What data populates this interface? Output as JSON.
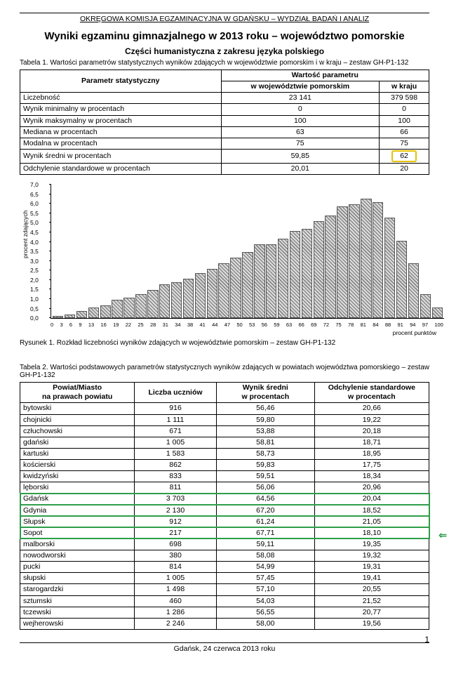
{
  "header": "OKRĘGOWA KOMISJA EGZAMINACYJNA W GDAŃSKU – WYDZIAŁ BADAŃ I ANALIZ",
  "title": "Wyniki egzaminu gimnazjalnego w 2013 roku – województwo pomorskie",
  "subtitle": "Części humanistyczna z zakresu języka polskiego",
  "table1_caption": "Tabela 1. Wartości parametrów statystycznych wyników zdających w województwie pomorskim i w kraju – zestaw GH-P1-132",
  "t1": {
    "h_param": "Parametr statystyczny",
    "h_val": "Wartość parametru",
    "h_region": "w województwie pomorskim",
    "h_country": "w kraju",
    "rows": [
      {
        "label": "Liczebność",
        "a": "23 141",
        "b": "379 598"
      },
      {
        "label": "Wynik minimalny w procentach",
        "a": "0",
        "b": "0"
      },
      {
        "label": "Wynik maksymalny w procentach",
        "a": "100",
        "b": "100"
      },
      {
        "label": "Mediana w procentach",
        "a": "63",
        "b": "66"
      },
      {
        "label": "Modalna w procentach",
        "a": "75",
        "b": "75"
      },
      {
        "label": "Wynik średni w procentach",
        "a": "59,85",
        "b": "62",
        "hl": true
      },
      {
        "label": "Odchylenie standardowe w procentach",
        "a": "20,01",
        "b": "20"
      }
    ]
  },
  "chart": {
    "ylabel": "procent zdających",
    "xlabel": "procent punktów",
    "ymax": 7.0,
    "ytick_step": 0.5,
    "x_categories": [
      0,
      3,
      6,
      9,
      13,
      16,
      19,
      22,
      25,
      28,
      31,
      34,
      38,
      41,
      44,
      47,
      50,
      53,
      56,
      59,
      63,
      66,
      69,
      72,
      75,
      78,
      81,
      84,
      88,
      91,
      94,
      97,
      100
    ],
    "values": [
      0.05,
      0.1,
      0.3,
      0.5,
      0.6,
      0.9,
      1.0,
      1.2,
      1.4,
      1.7,
      1.8,
      2.0,
      2.3,
      2.5,
      2.8,
      3.1,
      3.4,
      3.8,
      3.8,
      4.1,
      4.5,
      4.6,
      5.0,
      5.3,
      5.8,
      5.9,
      6.2,
      6.0,
      5.2,
      4.0,
      2.8,
      1.2,
      0.5
    ],
    "bar_border": "#555"
  },
  "fig1_caption": "Rysunek 1. Rozkład liczebności wyników zdających w województwie pomorskim – zestaw GH-P1-132",
  "table2_caption": "Tabela 2. Wartości podstawowych parametrów statystycznych wyników zdających w powiatach województwa pomorskiego – zestaw GH-P1-132",
  "t2": {
    "h1": "Powiat/Miasto\nna prawach powiatu",
    "h2": "Liczba uczniów",
    "h3": "Wynik średni\nw procentach",
    "h4": "Odchylenie standardowe\nw procentach",
    "rows": [
      {
        "n": "bytowski",
        "c": "916",
        "m": "56,46",
        "s": "20,66"
      },
      {
        "n": "chojnicki",
        "c": "1 111",
        "m": "59,80",
        "s": "19,22"
      },
      {
        "n": "człuchowski",
        "c": "671",
        "m": "53,88",
        "s": "20,18"
      },
      {
        "n": "gdański",
        "c": "1 005",
        "m": "58,81",
        "s": "18,71"
      },
      {
        "n": "kartuski",
        "c": "1 583",
        "m": "58,73",
        "s": "18,95"
      },
      {
        "n": "kościerski",
        "c": "862",
        "m": "59,83",
        "s": "17,75"
      },
      {
        "n": "kwidzyński",
        "c": "833",
        "m": "59,51",
        "s": "18,34"
      },
      {
        "n": "lęborski",
        "c": "811",
        "m": "56,06",
        "s": "20,96"
      },
      {
        "n": "Gdańsk",
        "c": "3 703",
        "m": "64,56",
        "s": "20,04",
        "hl": "g1"
      },
      {
        "n": "Gdynia",
        "c": "2 130",
        "m": "67,20",
        "s": "18,52",
        "hl": "g1"
      },
      {
        "n": "Słupsk",
        "c": "912",
        "m": "61,24",
        "s": "21,05",
        "hl": "g1"
      },
      {
        "n": "Sopot",
        "c": "217",
        "m": "67,71",
        "s": "18,10",
        "hl": "g2",
        "arrow": true
      },
      {
        "n": "malborski",
        "c": "698",
        "m": "59,11",
        "s": "19,35"
      },
      {
        "n": "nowodworski",
        "c": "380",
        "m": "58,08",
        "s": "19,32"
      },
      {
        "n": "pucki",
        "c": "814",
        "m": "54,99",
        "s": "19,31"
      },
      {
        "n": "słupski",
        "c": "1 005",
        "m": "57,45",
        "s": "19,41"
      },
      {
        "n": "starogardzki",
        "c": "1 498",
        "m": "57,10",
        "s": "20,55"
      },
      {
        "n": "sztumski",
        "c": "460",
        "m": "54,03",
        "s": "21,52"
      },
      {
        "n": "tczewski",
        "c": "1 286",
        "m": "56,55",
        "s": "20,77"
      },
      {
        "n": "wejherowski",
        "c": "2 246",
        "m": "58,00",
        "s": "19,56"
      }
    ]
  },
  "footer": "Gdańsk, 24 czerwca 2013 roku",
  "pagenum": "1"
}
